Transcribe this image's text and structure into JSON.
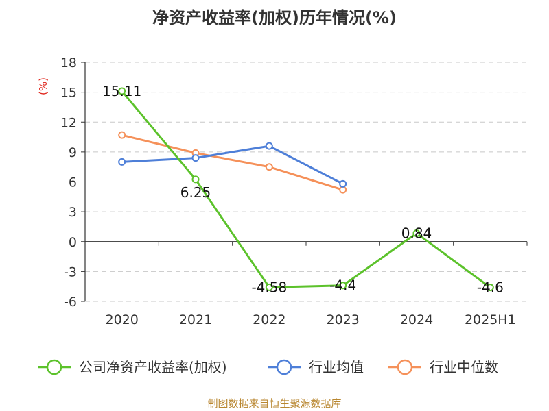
{
  "chart_data": {
    "type": "line",
    "title": "净资产收益率(加权)历年情况(%)",
    "unit_label": "(%)",
    "categories": [
      "2020",
      "2021",
      "2022",
      "2023",
      "2024",
      "2025H1"
    ],
    "ylim": [
      -6,
      18
    ],
    "yticks": [
      18,
      15,
      12,
      9,
      6,
      3,
      0,
      -3,
      -6
    ],
    "grid": true,
    "legend_position": "bottom",
    "series": [
      {
        "name": "公司净资产收益率(加权)",
        "color": "#5cc22b",
        "values": [
          15.11,
          6.25,
          -4.58,
          -4.4,
          0.84,
          -4.6
        ],
        "labels": [
          "15.11",
          "6.25",
          "-4.58",
          "-4.4",
          "0.84",
          "-4.6"
        ]
      },
      {
        "name": "行业均值",
        "color": "#4e7fd8",
        "values": [
          8.0,
          8.4,
          9.6,
          5.8,
          null,
          null
        ]
      },
      {
        "name": "行业中位数",
        "color": "#f5915a",
        "values": [
          10.7,
          8.9,
          7.5,
          5.2,
          null,
          null
        ]
      }
    ]
  },
  "footer": {
    "source": "制图数据来自恒生聚源数据库"
  }
}
